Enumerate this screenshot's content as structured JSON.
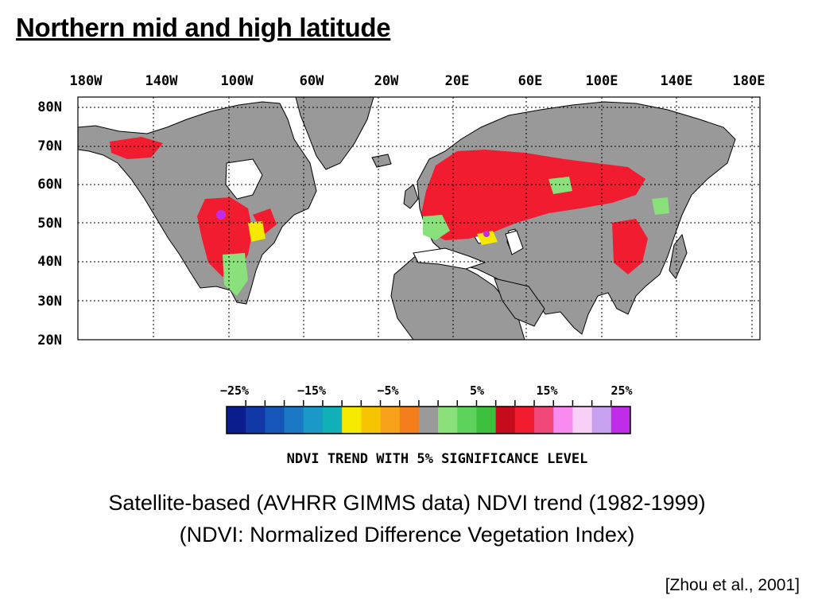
{
  "slide": {
    "title": "Northern mid and high latitude",
    "caption_line1": "Satellite-based   (AVHRR GIMMS data) NDVI trend (1982-1999)",
    "caption_line2": "(NDVI: Normalized Difference Vegetation Index)",
    "citation": "[Zhou et al., 2001]"
  },
  "map": {
    "longitude_labels": [
      "180W",
      "140W",
      "100W",
      "60W",
      "20W",
      "20E",
      "60E",
      "100E",
      "140E",
      "180E"
    ],
    "latitude_labels": [
      "80N",
      "70N",
      "60N",
      "50N",
      "40N",
      "30N",
      "20N"
    ],
    "colors": {
      "land": "#999999",
      "ocean": "#ffffff",
      "gridline": "#000000"
    }
  },
  "legend": {
    "tick_labels": [
      "−25%",
      "−15%",
      "−5%",
      "5%",
      "15%",
      "25%"
    ],
    "label": "NDVI TREND WITH 5% SIGNIFICANCE LEVEL",
    "swatches": [
      "#0b1c8c",
      "#1238a8",
      "#1656b8",
      "#1a78c4",
      "#1a98c8",
      "#12b0b8",
      "#f5e900",
      "#f6c400",
      "#f7a21a",
      "#f57e1c",
      "#9a9a9a",
      "#8ae07a",
      "#5cd45c",
      "#3cbf3c",
      "#c40c1c",
      "#f21c30",
      "#f04878",
      "#f88af0",
      "#f8d0f8",
      "#c8a0f0",
      "#c02ce8"
    ]
  }
}
